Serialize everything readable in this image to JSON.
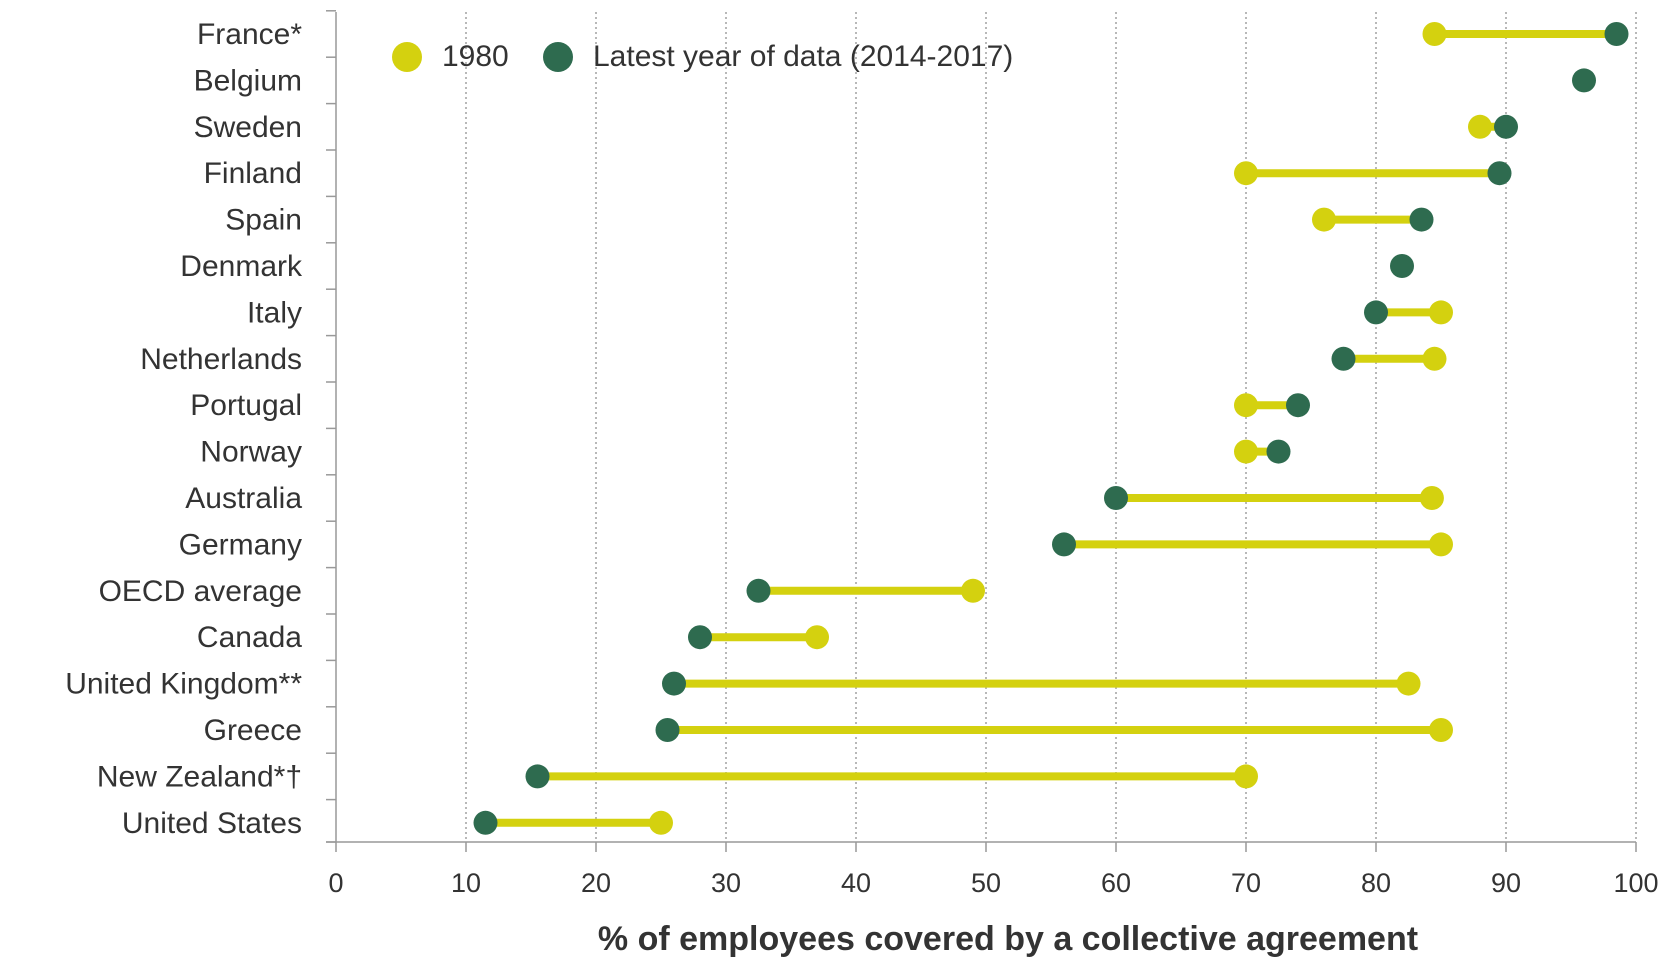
{
  "colors": {
    "y1980": "#d4d10f",
    "latest": "#2e6b4f",
    "grid": "#888888",
    "axis": "#999999",
    "text": "#333333"
  },
  "chart_data": {
    "type": "dumbbell",
    "xlabel": "% of employees covered by a collective agreement",
    "xlim": [
      0,
      100
    ],
    "xticks": [
      0,
      10,
      20,
      30,
      40,
      50,
      60,
      70,
      80,
      90,
      100
    ],
    "grid": "vertical-dotted",
    "legend_position": "top-left",
    "series": [
      {
        "name": "1980",
        "color": "#d4d10f"
      },
      {
        "name": "Latest year of data (2014-2017)",
        "color": "#2e6b4f"
      }
    ],
    "categories": [
      "France*",
      "Belgium",
      "Sweden",
      "Finland",
      "Spain",
      "Denmark",
      "Italy",
      "Netherlands",
      "Portugal",
      "Norway",
      "Australia",
      "Germany",
      "OECD average",
      "Canada",
      "United Kingdom**",
      "Greece",
      "New Zealand*†",
      "United States"
    ],
    "values_1980": [
      84.5,
      null,
      88,
      70,
      76,
      null,
      85,
      84.5,
      70,
      70,
      84.3,
      85,
      49,
      37,
      82.5,
      85,
      70,
      25
    ],
    "values_latest": [
      98.5,
      96,
      90,
      89.5,
      83.5,
      82,
      80,
      77.5,
      74,
      72.5,
      60,
      56,
      32.5,
      28,
      26,
      25.5,
      15.5,
      11.5
    ]
  }
}
